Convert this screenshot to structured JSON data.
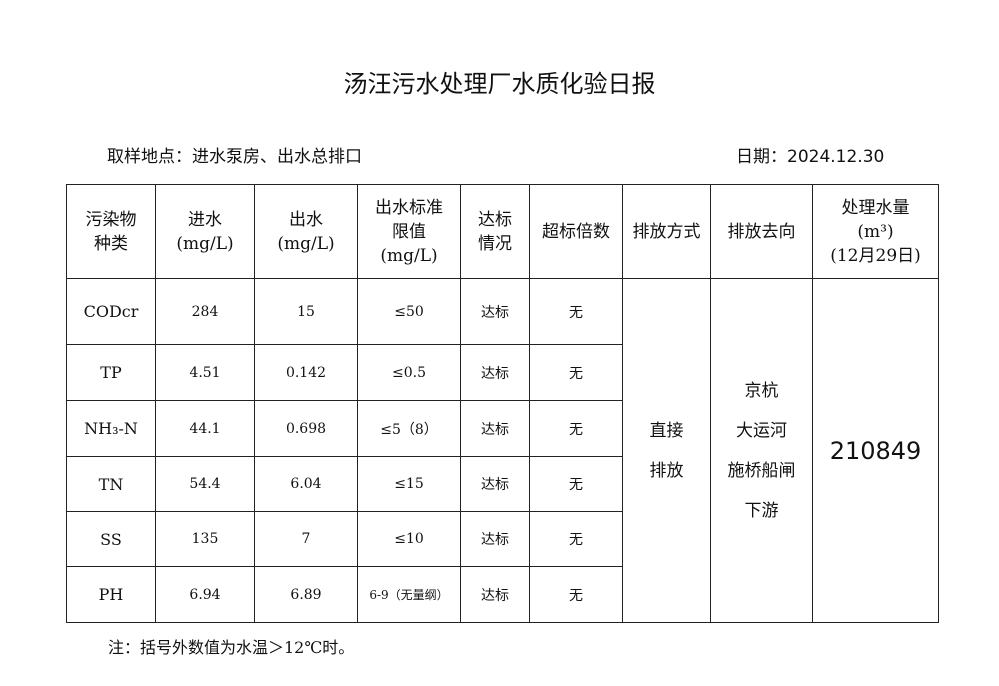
{
  "title": "汤汪污水处理厂水质化验日报",
  "location": "取样地点：进水泵房、出水总排口",
  "date": "日期：2024.12.30",
  "headers": {
    "pollutant": [
      "污染物",
      "种类"
    ],
    "inflow": [
      "进水",
      "(mg/L)"
    ],
    "outflow": [
      "出水",
      "(mg/L)"
    ],
    "limit": [
      "出水标准",
      "限值",
      "(mg/L)"
    ],
    "status": [
      "达标",
      "情况"
    ],
    "exceed": "超标倍数",
    "method": "排放方式",
    "destination": "排放去向",
    "volume": [
      "处理水量",
      "(m³)",
      "(12月29日)"
    ]
  },
  "rows": [
    {
      "name": "CODcr",
      "in": "284",
      "out": "15",
      "limit": "≤50",
      "status": "达标",
      "exceed": "无"
    },
    {
      "name": "TP",
      "in": "4.51",
      "out": "0.142",
      "limit": "≤0.5",
      "status": "达标",
      "exceed": "无"
    },
    {
      "name": "NH₃-N",
      "in": "44.1",
      "out": "0.698",
      "limit": "≤5（8）",
      "status": "达标",
      "exceed": "无"
    },
    {
      "name": "TN",
      "in": "54.4",
      "out": "6.04",
      "limit": "≤15",
      "status": "达标",
      "exceed": "无"
    },
    {
      "name": "SS",
      "in": "135",
      "out": "7",
      "limit": "≤10",
      "status": "达标",
      "exceed": "无"
    },
    {
      "name": "PH",
      "in": "6.94",
      "out": "6.89",
      "limit": "6-9（无量纲）",
      "status": "达标",
      "exceed": "无"
    }
  ],
  "method": [
    "直接",
    "排放"
  ],
  "destination": [
    "京杭",
    "大运河",
    "施桥船闸",
    "下游"
  ],
  "volume": "210849",
  "note": "注：括号外数值为水温＞12℃时。"
}
